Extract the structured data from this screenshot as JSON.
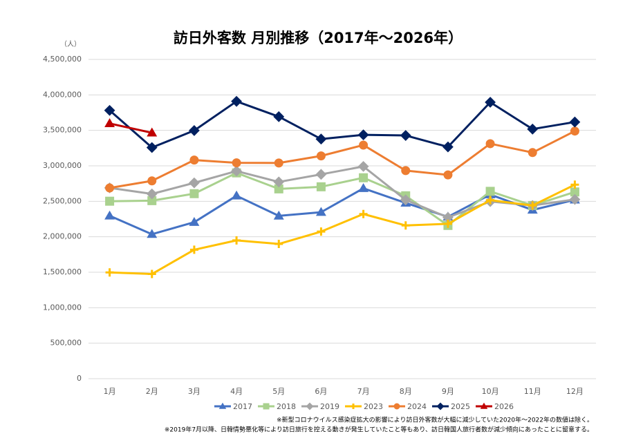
{
  "chart_data": {
    "type": "line",
    "title": "訪日外客数 月別推移（2017年～2026年）",
    "y_unit_label": "（人）",
    "categories": [
      "1月",
      "2月",
      "3月",
      "4月",
      "5月",
      "6月",
      "7月",
      "8月",
      "9月",
      "10月",
      "11月",
      "12月"
    ],
    "ylim": [
      0,
      4500000
    ],
    "yticks": [
      0,
      {
        "value": 500000,
        "label": "500,000"
      },
      {
        "value": 1000000,
        "label": "1,000,000"
      },
      {
        "value": 1500000,
        "label": "1,500,000"
      },
      {
        "value": 2000000,
        "label": "2,000,000"
      },
      {
        "value": 2500000,
        "label": "2,500,000"
      },
      {
        "value": 3000000,
        "label": "3,000,000"
      },
      {
        "value": 3500000,
        "label": "3,500,000"
      },
      {
        "value": 4000000,
        "label": "4,000,000"
      },
      {
        "value": 4500000,
        "label": "4,500,000"
      }
    ],
    "grid": true,
    "legend": "bottom",
    "series": [
      {
        "name": "2017",
        "color": "#4472c4",
        "marker": "triangle",
        "values": [
          2295700,
          2035800,
          2205700,
          2578000,
          2294700,
          2346500,
          2682800,
          2477300,
          2280900,
          2595000,
          2377900,
          2521000
        ]
      },
      {
        "name": "2018",
        "color": "#a9d18e",
        "marker": "square",
        "values": [
          2501400,
          2509300,
          2607900,
          2900700,
          2675100,
          2704600,
          2832000,
          2578000,
          2159600,
          2640600,
          2441300,
          2632000
        ]
      },
      {
        "name": "2019",
        "color": "#a5a5a5",
        "marker": "diamond",
        "values": [
          2689300,
          2604300,
          2760100,
          2926700,
          2773100,
          2880000,
          2991200,
          2520100,
          2272900,
          2496600,
          2440800,
          2526400
        ]
      },
      {
        "name": "2023",
        "color": "#ffc000",
        "marker": "plus",
        "values": [
          1497300,
          1475300,
          1817500,
          1949100,
          1898900,
          2073300,
          2320600,
          2159600,
          2182900,
          2516500,
          2440900,
          2734000
        ]
      },
      {
        "name": "2024",
        "color": "#ed7d31",
        "marker": "circle",
        "values": [
          2688100,
          2788000,
          3081600,
          3042900,
          3040000,
          3140000,
          3292500,
          2933000,
          2872200,
          3312200,
          3187000,
          3489800
        ]
      },
      {
        "name": "2025",
        "color": "#002060",
        "marker": "diamond",
        "values": [
          3781600,
          3258100,
          3497600,
          3908900,
          3693300,
          3377800,
          3437000,
          3428000,
          3266800,
          3896300,
          3518000,
          3617700
        ]
      },
      {
        "name": "2026",
        "color": "#c00000",
        "marker": "triangle",
        "values": [
          3597500,
          3466000,
          null,
          null,
          null,
          null,
          null,
          null,
          null,
          null,
          null,
          null
        ]
      }
    ],
    "notes": [
      "※新型コロナウイルス感染症拡大の影響により訪日外客数が大幅に減少していた2020年～2022年の数値は除く。",
      "※2019年7月以降、日韓情勢悪化等により訪日旅行を控える動きが発生していたこと等もあり、訪日韓国人旅行者数が減少傾向にあったことに留意する。"
    ]
  }
}
